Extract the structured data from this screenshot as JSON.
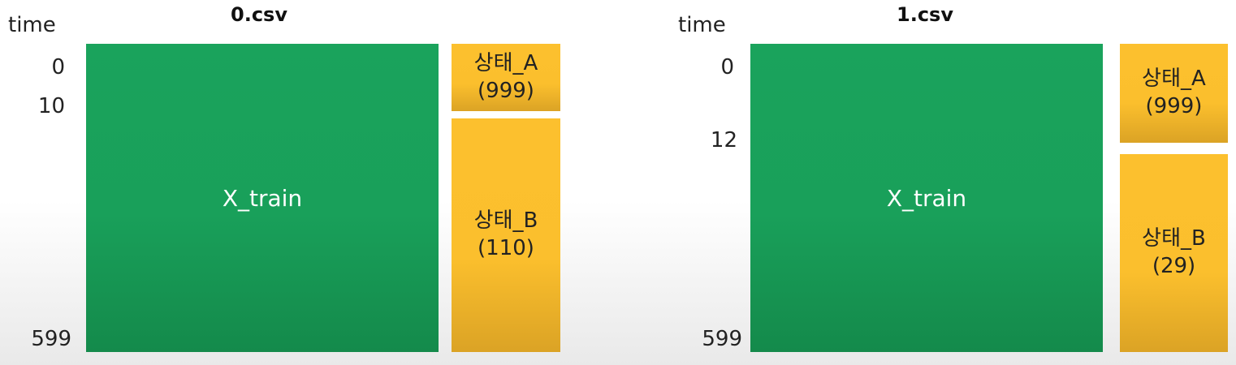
{
  "panels": [
    {
      "title": "0.csv",
      "axis_title": "time",
      "ticks": [
        "0",
        "10",
        "599"
      ],
      "train_label": "X_train",
      "state_a": {
        "name": "상태_A",
        "count": "(999)"
      },
      "state_b": {
        "name": "상태_B",
        "count": "(110)"
      }
    },
    {
      "title": "1.csv",
      "axis_title": "time",
      "ticks": [
        "0",
        "12",
        "599"
      ],
      "train_label": "X_train",
      "state_a": {
        "name": "상태_A",
        "count": "(999)"
      },
      "state_b": {
        "name": "상태_B",
        "count": "(29)"
      }
    }
  ],
  "colors": {
    "train_block": "#19a05a",
    "state_block": "#fbbf2d"
  }
}
